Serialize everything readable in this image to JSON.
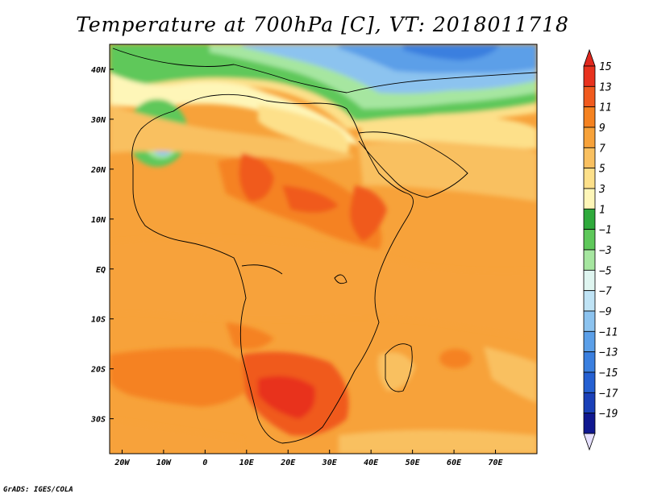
{
  "title": "Temperature at 700hPa [C], VT: 2018011718",
  "credit": "GrADS: IGES/COLA",
  "map": {
    "lon_range": [
      -23,
      80
    ],
    "lat_range": [
      -37,
      45
    ],
    "lon_ticks": [
      {
        "value": -20,
        "label": "20W"
      },
      {
        "value": -10,
        "label": "10W"
      },
      {
        "value": 0,
        "label": "0"
      },
      {
        "value": 10,
        "label": "10E"
      },
      {
        "value": 20,
        "label": "20E"
      },
      {
        "value": 30,
        "label": "30E"
      },
      {
        "value": 40,
        "label": "40E"
      },
      {
        "value": 50,
        "label": "50E"
      },
      {
        "value": 60,
        "label": "60E"
      },
      {
        "value": 70,
        "label": "70E"
      }
    ],
    "lat_ticks": [
      {
        "value": 40,
        "label": "40N"
      },
      {
        "value": 30,
        "label": "30N"
      },
      {
        "value": 20,
        "label": "20N"
      },
      {
        "value": 10,
        "label": "10N"
      },
      {
        "value": 0,
        "label": "EQ"
      },
      {
        "value": -10,
        "label": "10S"
      },
      {
        "value": -20,
        "label": "20S"
      },
      {
        "value": -30,
        "label": "30S"
      }
    ]
  },
  "colorbar": {
    "labels": [
      "15",
      "13",
      "11",
      "9",
      "7",
      "5",
      "3",
      "1",
      "−1",
      "−3",
      "−5",
      "−7",
      "−9",
      "−11",
      "−13",
      "−15",
      "−17",
      "−19"
    ],
    "colors": [
      "#e8321e",
      "#f05a1e",
      "#f58220",
      "#f7a23a",
      "#f9c060",
      "#fde08a",
      "#fef6b8",
      "#2faa3c",
      "#5ec85a",
      "#a6e6a0",
      "#dff5f0",
      "#bfe3f5",
      "#8cc3ef",
      "#5b9fe8",
      "#3a7fdf",
      "#2560d2",
      "#1a40b8",
      "#101890"
    ],
    "top_color": "#e0281e",
    "bottom_color": "#e6e0ff"
  }
}
